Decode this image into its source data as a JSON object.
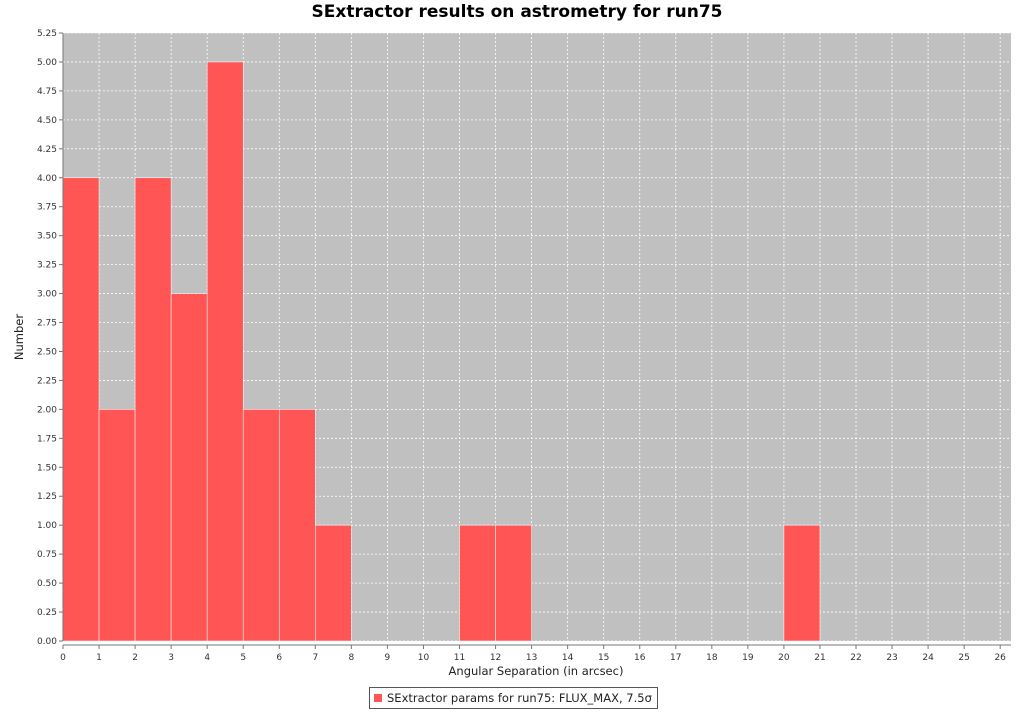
{
  "chart_data": {
    "type": "bar",
    "title": "SExtractor results on astrometry for run75",
    "xlabel": "Angular Separation (in arcsec)",
    "ylabel": "Number",
    "xlim": [
      0,
      26.3
    ],
    "ylim": [
      0,
      5.25
    ],
    "xticks": [
      0,
      1,
      2,
      3,
      4,
      5,
      6,
      7,
      8,
      9,
      10,
      11,
      12,
      13,
      14,
      15,
      16,
      17,
      18,
      19,
      20,
      21,
      22,
      23,
      24,
      25,
      26
    ],
    "yticks": [
      "0.00",
      "0.25",
      "0.50",
      "0.75",
      "1.00",
      "1.25",
      "1.50",
      "1.75",
      "2.00",
      "2.25",
      "2.50",
      "2.75",
      "3.00",
      "3.25",
      "3.50",
      "3.75",
      "4.00",
      "4.25",
      "4.50",
      "4.75",
      "5.00",
      "5.25"
    ],
    "grid": true,
    "legend_placement": "bottom",
    "series": [
      {
        "name": "SExtractor params for run75: FLUX_MAX, 7.5σ",
        "bins": [
          {
            "x0": 0,
            "x1": 1,
            "value": 4
          },
          {
            "x0": 1,
            "x1": 2,
            "value": 2
          },
          {
            "x0": 2,
            "x1": 3,
            "value": 4
          },
          {
            "x0": 3,
            "x1": 4,
            "value": 3
          },
          {
            "x0": 4,
            "x1": 5,
            "value": 5
          },
          {
            "x0": 5,
            "x1": 6,
            "value": 2
          },
          {
            "x0": 6,
            "x1": 7,
            "value": 2
          },
          {
            "x0": 7,
            "x1": 8,
            "value": 1
          },
          {
            "x0": 11,
            "x1": 12,
            "value": 1
          },
          {
            "x0": 12,
            "x1": 13,
            "value": 1
          },
          {
            "x0": 20,
            "x1": 21,
            "value": 1
          }
        ]
      }
    ]
  },
  "colors": {
    "bar": "#ff5555",
    "plot_background": "#c0c0c0",
    "grid": "#ffffff"
  }
}
